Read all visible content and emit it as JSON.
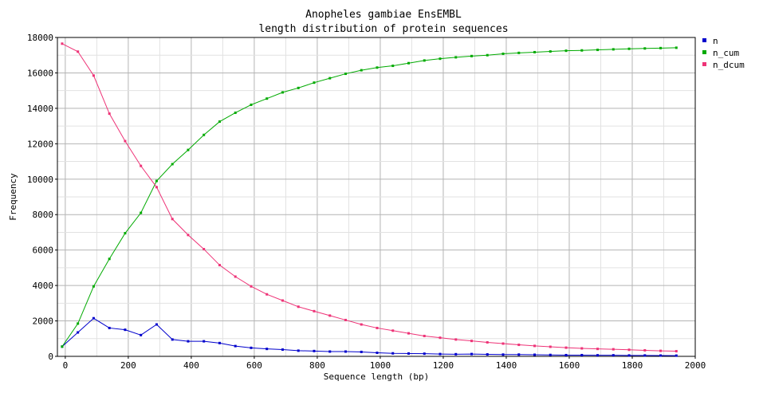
{
  "chart_data": {
    "type": "line",
    "title": "Anopheles gambiae EnsEMBL",
    "subtitle": "length distribution of protein sequences",
    "xlabel": "Sequence length (bp)",
    "ylabel": "Frequency",
    "xlim": [
      -25,
      2000
    ],
    "ylim": [
      0,
      18000
    ],
    "x_ticks": [
      0,
      200,
      400,
      600,
      800,
      1000,
      1200,
      1400,
      1600,
      1800,
      2000
    ],
    "x_tick_labels": [
      "0",
      "200",
      "400",
      "600",
      "800",
      "1000",
      "1200",
      "1400",
      "1600",
      "1800",
      "2000"
    ],
    "y_ticks": [
      0,
      2000,
      4000,
      6000,
      8000,
      10000,
      12000,
      14000,
      16000,
      18000
    ],
    "y_tick_labels": [
      "0",
      "2000",
      "4000",
      "6000",
      "8000",
      "10000",
      "12000",
      "14000",
      "16000",
      "18000"
    ],
    "grid": true,
    "legend_position": "top-right",
    "x": [
      -10,
      40,
      90,
      140,
      190,
      240,
      290,
      340,
      390,
      440,
      490,
      540,
      590,
      640,
      690,
      740,
      790,
      840,
      890,
      940,
      990,
      1040,
      1090,
      1140,
      1190,
      1240,
      1290,
      1340,
      1390,
      1440,
      1490,
      1540,
      1590,
      1640,
      1690,
      1740,
      1790,
      1840,
      1890,
      1940
    ],
    "series": [
      {
        "name": "n",
        "color": "#0000cc",
        "values": [
          550,
          1350,
          2150,
          1600,
          1500,
          1200,
          1800,
          950,
          850,
          850,
          750,
          580,
          480,
          420,
          380,
          320,
          300,
          270,
          270,
          250,
          200,
          170,
          160,
          150,
          130,
          120,
          130,
          110,
          100,
          100,
          90,
          80,
          70,
          70,
          60,
          60,
          50,
          50,
          45,
          40
        ]
      },
      {
        "name": "n_cum",
        "color": "#00aa00",
        "values": [
          550,
          1850,
          3950,
          5500,
          6950,
          8100,
          9900,
          10850,
          11650,
          12500,
          13250,
          13750,
          14200,
          14550,
          14900,
          15150,
          15450,
          15700,
          15950,
          16150,
          16300,
          16400,
          16550,
          16700,
          16800,
          16880,
          16950,
          17000,
          17080,
          17130,
          17170,
          17210,
          17250,
          17270,
          17300,
          17330,
          17360,
          17380,
          17400,
          17420
        ]
      },
      {
        "name": "n_dcum",
        "color": "#ee3377",
        "values": [
          17650,
          17200,
          15850,
          13700,
          12150,
          10750,
          9550,
          7750,
          6850,
          6050,
          5150,
          4500,
          3950,
          3500,
          3150,
          2800,
          2550,
          2300,
          2050,
          1800,
          1600,
          1450,
          1300,
          1150,
          1050,
          950,
          870,
          790,
          720,
          650,
          590,
          540,
          490,
          450,
          420,
          400,
          370,
          340,
          310,
          290
        ]
      }
    ]
  }
}
